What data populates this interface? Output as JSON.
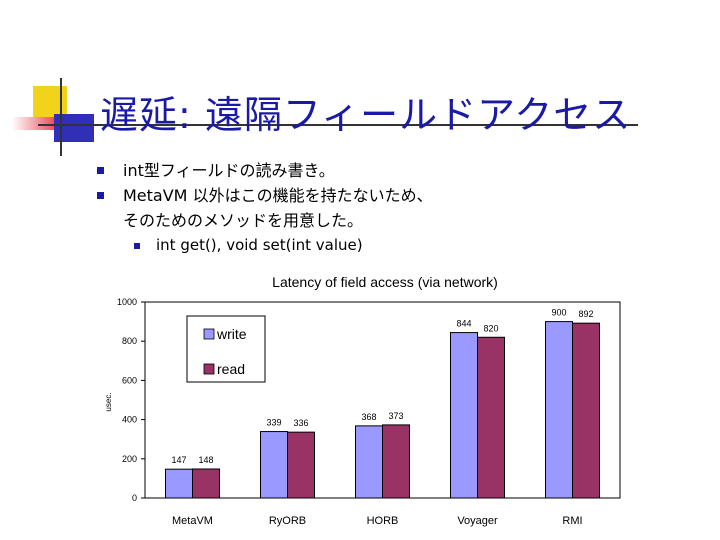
{
  "slide": {
    "title": "遅延: 遠隔フィールドアクセス",
    "bullets": [
      "int型フィールドの読み書き。",
      "MetaVM 以外はこの機能を持たないため、",
      "そのためのメソッドを用意した。"
    ],
    "sub_bullet": "int get(),  void set(int value)",
    "colors": {
      "title": "#1a1aa6",
      "deco_yellow": "#f2d31c",
      "deco_red": "#e8485a",
      "deco_blue": "#2f2fb8"
    }
  },
  "chart_data": {
    "type": "bar",
    "title": "Latency of field access (via network)",
    "ylabel": "usec.",
    "xlabel": "",
    "ylim": [
      0,
      1000
    ],
    "yticks": [
      0,
      200,
      400,
      600,
      800,
      1000
    ],
    "categories": [
      "MetaVM",
      "RyORB",
      "HORB",
      "Voyager",
      "RMI"
    ],
    "series": [
      {
        "name": "write",
        "values": [
          147,
          339,
          368,
          844,
          900
        ],
        "color": "#9999ff"
      },
      {
        "name": "read",
        "values": [
          148,
          336,
          373,
          820,
          892
        ],
        "color": "#993366"
      }
    ],
    "grid": false,
    "legend_position": "top-left"
  }
}
